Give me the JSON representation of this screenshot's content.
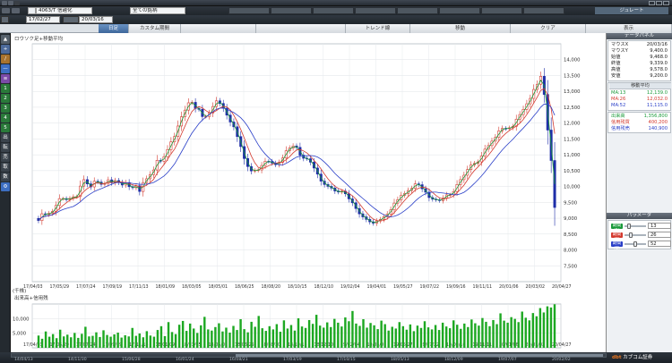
{
  "window": {
    "symbol_input": "4063/T 信越化",
    "market_select": "全ての銘柄"
  },
  "toolbar": {
    "simulate_label": "ジュレート"
  },
  "datebar": {
    "start_date": "17/02/27",
    "end_date": "20/03/16"
  },
  "tabs": [
    {
      "label": "日足",
      "active": true
    },
    {
      "label": "カスタム期間"
    },
    {
      "label": "トレンド線"
    },
    {
      "label": "移動"
    },
    {
      "label": "クリア"
    },
    {
      "label": "表示"
    }
  ],
  "leftbar": {
    "buttons": [
      "1",
      "2",
      "3",
      "4",
      "5",
      "出",
      "転",
      "売",
      "取",
      "数"
    ]
  },
  "chart_titles": {
    "price": "ロウソク足+移動平均",
    "volume": "出来高+信用残"
  },
  "volume_unit": "(千株)",
  "right_panel": {
    "data_header": "データパネル",
    "rows": [
      {
        "k": "マウスX",
        "v": "20/03/16",
        "color": "#222"
      },
      {
        "k": "マウスY",
        "v": "9,400.0",
        "color": "#222"
      },
      {
        "k": "始値",
        "v": "9,468.0",
        "color": "#222"
      },
      {
        "k": "終値",
        "v": "9,339.0",
        "color": "#222"
      },
      {
        "k": "高値",
        "v": "9,578.0",
        "color": "#222"
      },
      {
        "k": "安値",
        "v": "9,200.0",
        "color": "#222"
      }
    ],
    "ma_header": "移動平均",
    "ma_rows": [
      {
        "k": "MA:13",
        "v": "12,139.0",
        "color": "#1a9a3a"
      },
      {
        "k": "MA:26",
        "v": "12,032.0",
        "color": "#d43a2f"
      },
      {
        "k": "MA:52",
        "v": "11,115.0",
        "color": "#2a3fc8"
      }
    ],
    "vol_rows": [
      {
        "k": "出来高",
        "v": "1,356,800",
        "color": "#1a9a3a"
      },
      {
        "k": "信用残買",
        "v": "400,200",
        "color": "#d43a2f"
      },
      {
        "k": "信用残売",
        "v": "140,900",
        "color": "#2a3fc8"
      }
    ],
    "param_header": "パラメータ",
    "params": [
      {
        "label": "期間(1)",
        "value": "13",
        "color": "#1a9a3a",
        "level": 0.13
      },
      {
        "label": "期間(2)",
        "value": "26",
        "color": "#d43a2f",
        "level": 0.26
      },
      {
        "label": "期間(3)",
        "value": "52",
        "color": "#2a3fc8",
        "level": 0.52
      }
    ]
  },
  "bottom": {
    "logo_text": "dbt カブコム証券",
    "dates": [
      "14/04/13",
      "14/11/30",
      "15/06/28",
      "16/01/24",
      "16/08/21",
      "17/03/19",
      "17/10/15",
      "18/05/13",
      "18/12/09",
      "19/07/07",
      "20/02/02"
    ]
  },
  "chart_data": [
    {
      "type": "candlestick",
      "title": "ロウソク足+移動平均",
      "xlabel": "",
      "ylabel": "",
      "y_unit": "円",
      "ylim": [
        7000,
        14500
      ],
      "yticks": [
        7500,
        8000,
        8500,
        9000,
        9500,
        10000,
        10500,
        11000,
        11500,
        12000,
        12500,
        13000,
        13500,
        14000
      ],
      "x_tick_labels": [
        "17/04/03",
        "17/05/29",
        "17/07/24",
        "17/09/19",
        "17/11/13",
        "18/01/09",
        "18/03/05",
        "18/05/01",
        "18/06/25",
        "18/08/20",
        "18/10/15",
        "18/12/10",
        "19/02/04",
        "19/04/01",
        "19/05/27",
        "19/07/22",
        "19/09/16",
        "19/11/11",
        "20/01/06",
        "20/03/02",
        "20/04/27"
      ],
      "grid": true,
      "series": [
        {
          "name": "MA:13",
          "color": "#1a9a3a"
        },
        {
          "name": "MA:26",
          "color": "#d43a2f"
        },
        {
          "name": "MA:52",
          "color": "#2a3fc8"
        }
      ],
      "weekly": [
        [
          8993,
          8926
        ],
        [
          8926,
          9141
        ],
        [
          9141,
          9112
        ],
        [
          9112,
          9156
        ],
        [
          9156,
          9214
        ],
        [
          9214,
          9403
        ],
        [
          9403,
          9617
        ],
        [
          9617,
          9619
        ],
        [
          9619,
          9587
        ],
        [
          9587,
          9625
        ],
        [
          9625,
          9675
        ],
        [
          9675,
          9681
        ],
        [
          9681,
          10014
        ],
        [
          10014,
          10216
        ],
        [
          10216,
          10083
        ],
        [
          10083,
          9988
        ],
        [
          9988,
          10165
        ],
        [
          10165,
          10139
        ],
        [
          10139,
          10069
        ],
        [
          10069,
          10099
        ],
        [
          10099,
          10211
        ],
        [
          10211,
          10120
        ],
        [
          10120,
          10189
        ],
        [
          10189,
          10126
        ],
        [
          10126,
          10047
        ],
        [
          10047,
          10125
        ],
        [
          10125,
          9994
        ],
        [
          9994,
          9963
        ],
        [
          9963,
          10025
        ],
        [
          10025,
          9844
        ],
        [
          9844,
          10125
        ],
        [
          10125,
          10244
        ],
        [
          10244,
          10376
        ],
        [
          10376,
          10521
        ],
        [
          10521,
          10826
        ],
        [
          10826,
          10798
        ],
        [
          10798,
          10941
        ],
        [
          10941,
          11165
        ],
        [
          11165,
          11410
        ],
        [
          11410,
          11577
        ],
        [
          11577,
          11908
        ],
        [
          11908,
          12199
        ],
        [
          12199,
          12409
        ],
        [
          12409,
          12640
        ],
        [
          12640,
          12655
        ],
        [
          12655,
          12462
        ],
        [
          12462,
          12434
        ],
        [
          12434,
          12205
        ],
        [
          12205,
          12209
        ],
        [
          12209,
          12318
        ],
        [
          12318,
          12522
        ],
        [
          12522,
          12702
        ],
        [
          12702,
          12619
        ],
        [
          12619,
          12469
        ],
        [
          12469,
          12251
        ],
        [
          12251,
          12034
        ],
        [
          12034,
          11883
        ],
        [
          11883,
          11575
        ],
        [
          11575,
          11260
        ],
        [
          11260,
          10882
        ],
        [
          10882,
          10630
        ],
        [
          10630,
          10491
        ],
        [
          10491,
          10508
        ],
        [
          10508,
          10524
        ],
        [
          10524,
          10663
        ],
        [
          10663,
          10796
        ],
        [
          10796,
          10791
        ],
        [
          10791,
          10738
        ],
        [
          10738,
          10689
        ],
        [
          10689,
          10762
        ],
        [
          10762,
          10898
        ],
        [
          10898,
          11128
        ],
        [
          11128,
          11213
        ],
        [
          11213,
          11279
        ],
        [
          11279,
          11234
        ],
        [
          11234,
          10989
        ],
        [
          10989,
          10891
        ],
        [
          10891,
          10875
        ],
        [
          10875,
          10767
        ],
        [
          10767,
          10583
        ],
        [
          10583,
          10390
        ],
        [
          10390,
          10169
        ],
        [
          10169,
          10064
        ],
        [
          10064,
          10004
        ],
        [
          10004,
          9950
        ],
        [
          9950,
          9859
        ],
        [
          9859,
          9826
        ],
        [
          9826,
          9851
        ],
        [
          9851,
          9771
        ],
        [
          9771,
          9611
        ],
        [
          9611,
          9487
        ],
        [
          9487,
          9306
        ],
        [
          9306,
          9138
        ],
        [
          9138,
          9043
        ],
        [
          9043,
          8963
        ],
        [
          8963,
          8886
        ],
        [
          8886,
          8842
        ],
        [
          8842,
          8914
        ],
        [
          8914,
          8964
        ],
        [
          8964,
          9045
        ],
        [
          9045,
          9133
        ],
        [
          9133,
          9263
        ],
        [
          9263,
          9477
        ],
        [
          9477,
          9584
        ],
        [
          9584,
          9724
        ],
        [
          9724,
          9779
        ],
        [
          9779,
          9874
        ],
        [
          9874,
          9941
        ],
        [
          9941,
          10085
        ],
        [
          10085,
          10057
        ],
        [
          10057,
          9927
        ],
        [
          9927,
          9821
        ],
        [
          9821,
          9651
        ],
        [
          9651,
          9600
        ],
        [
          9600,
          9580
        ],
        [
          9580,
          9556
        ],
        [
          9556,
          9638
        ],
        [
          9638,
          9736
        ],
        [
          9736,
          9740
        ],
        [
          9740,
          9841
        ],
        [
          9841,
          10063
        ],
        [
          10063,
          10217
        ],
        [
          10217,
          10356
        ],
        [
          10356,
          10533
        ],
        [
          10533,
          10683
        ],
        [
          10683,
          10731
        ],
        [
          10731,
          10777
        ],
        [
          10777,
          10962
        ],
        [
          10962,
          11178
        ],
        [
          11178,
          11290
        ],
        [
          11290,
          11431
        ],
        [
          11431,
          11551
        ],
        [
          11551,
          11755
        ],
        [
          11755,
          11836
        ],
        [
          11836,
          11822
        ],
        [
          11822,
          11851
        ],
        [
          11851,
          11899
        ],
        [
          11899,
          12124
        ],
        [
          12124,
          12269
        ],
        [
          12269,
          12431
        ],
        [
          12431,
          12609
        ],
        [
          12609,
          12778
        ],
        [
          12778,
          13061
        ],
        [
          13061,
          13225
        ],
        [
          13225,
          13476
        ],
        [
          13476,
          12903
        ],
        [
          12903,
          11780
        ],
        [
          11780,
          10820
        ],
        [
          10820,
          9339
        ]
      ],
      "volume": {
        "ylim": [
          0,
          15000
        ],
        "yticks": [
          5000,
          10000
        ],
        "unit": "千株",
        "values": [
          4200,
          3100,
          5600,
          3800,
          4700,
          3300,
          6200,
          3900,
          4500,
          3600,
          5100,
          3400,
          4800,
          7200,
          3900,
          4100,
          5300,
          3700,
          6000,
          4400,
          3800,
          4600,
          5200,
          3500,
          4300,
          3900,
          6800,
          4100,
          4900,
          3600,
          5700,
          4200,
          3800,
          6100,
          7400,
          4000,
          8800,
          5400,
          4700,
          7900,
          9200,
          5800,
          8300,
          6600,
          5100,
          7700,
          10600,
          6300,
          5900,
          7100,
          8400,
          5600,
          6900,
          5200,
          7500,
          6100,
          9800,
          6400,
          5300,
          8900,
          7200,
          10900,
          6700,
          5800,
          7400,
          6300,
          8100,
          5500,
          9400,
          6600,
          7800,
          5900,
          10100,
          7300,
          6800,
          9500,
          8200,
          11300,
          7600,
          6900,
          8700,
          7100,
          9900,
          8600,
          7300,
          10400,
          9100,
          12600,
          8300,
          7500,
          9800,
          6900,
          8500,
          7700,
          6400,
          9300,
          8100,
          5900,
          7200,
          6600,
          8800,
          7400,
          6200,
          8000,
          5700,
          7600,
          6800,
          9100,
          7000,
          6300,
          7800,
          6100,
          8600,
          7300,
          6700,
          9400,
          7900,
          6500,
          8300,
          7100,
          9700,
          8400,
          7600,
          10200,
          8900,
          7400,
          9500,
          8100,
          11800,
          9300,
          8600,
          10500,
          9900,
          8800,
          12400,
          10300,
          9400,
          11900,
          10800,
          13600,
          12100,
          14200,
          13800,
          14900
        ]
      }
    }
  ]
}
